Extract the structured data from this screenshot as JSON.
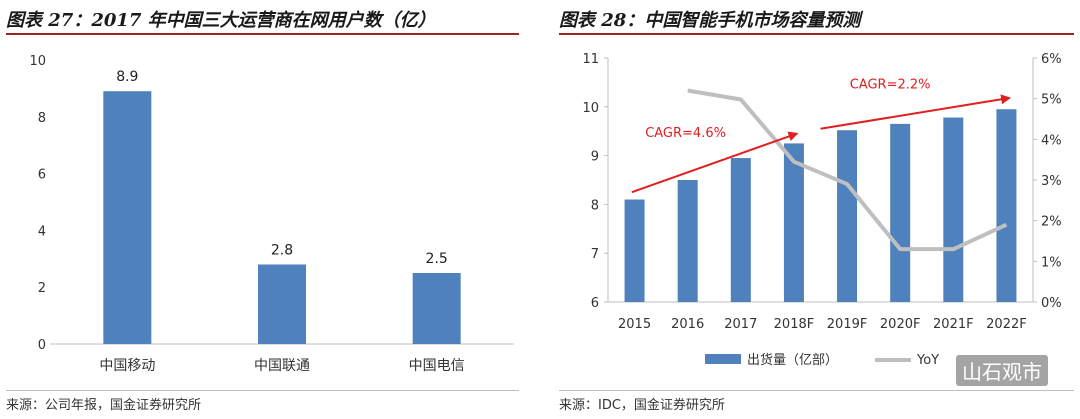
{
  "left": {
    "title": "图表 27：2017 年中国三大运营商在网用户数（亿）",
    "source": "来源：公司年报，国金证券研究所",
    "chart_data": {
      "type": "bar",
      "title": "2017 年中国三大运营商在网用户数（亿）",
      "categories": [
        "中国移动",
        "中国联通",
        "中国电信"
      ],
      "values": [
        8.9,
        2.8,
        2.5
      ],
      "data_labels": [
        "8.9",
        "2.8",
        "2.5"
      ],
      "ylim": [
        0,
        10
      ],
      "yticks": [
        0,
        2,
        4,
        6,
        8,
        10
      ],
      "ytick_labels": [
        "0",
        "2",
        "4",
        "6",
        "8",
        "10"
      ],
      "xlabel": "",
      "ylabel": "",
      "color": "#4f81bd"
    }
  },
  "right": {
    "title": "图表 28：中国智能手机市场容量预测",
    "source": "来源：IDC，国金证券研究所",
    "watermark": "山石观市",
    "chart_data": {
      "type": "bar+line",
      "title": "中国智能手机市场容量预测",
      "categories": [
        "2015",
        "2016",
        "2017",
        "2018F",
        "2019F",
        "2020F",
        "2021F",
        "2022F"
      ],
      "series": [
        {
          "name": "出货量（亿部）",
          "type": "bar",
          "axis": "left",
          "color": "#4f81bd",
          "values": [
            8.1,
            8.5,
            8.95,
            9.25,
            9.52,
            9.65,
            9.78,
            9.95
          ]
        },
        {
          "name": "YoY",
          "type": "line",
          "axis": "right",
          "color": "#bfbfbf",
          "values": [
            null,
            5.2,
            4.98,
            3.45,
            2.9,
            1.3,
            1.3,
            1.9
          ]
        }
      ],
      "left_axis": {
        "range": [
          6,
          11
        ],
        "ticks": [
          6,
          7,
          8,
          9,
          10,
          11
        ],
        "tick_labels": [
          "6",
          "7",
          "8",
          "9",
          "10",
          "11"
        ]
      },
      "right_axis": {
        "range": [
          0,
          6
        ],
        "ticks": [
          0,
          1,
          2,
          3,
          4,
          5,
          6
        ],
        "tick_labels": [
          "0%",
          "1%",
          "2%",
          "3%",
          "4%",
          "5%",
          "6%"
        ]
      },
      "legend_position": "bottom",
      "annotations": [
        {
          "text": "CAGR=4.6%",
          "color": "#e02020",
          "from": [
            -0.05,
            8.25
          ],
          "to": [
            3.05,
            9.45
          ],
          "label_at": [
            0.2,
            9.38
          ]
        },
        {
          "text": "CAGR=2.2%",
          "color": "#e02020",
          "from": [
            3.5,
            9.55
          ],
          "to": [
            7.05,
            10.18
          ],
          "label_at": [
            4.05,
            10.38
          ]
        }
      ]
    }
  }
}
